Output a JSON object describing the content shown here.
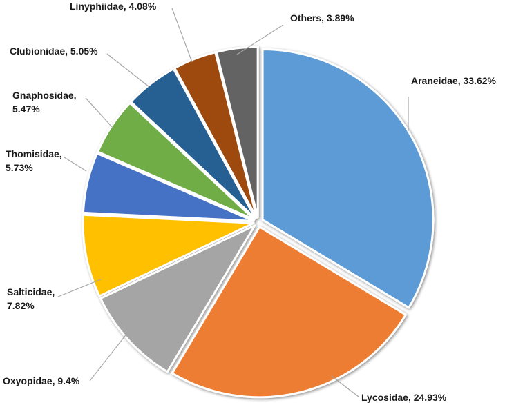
{
  "chart_data": {
    "type": "pie",
    "title": "",
    "start_angle_deg": 0,
    "direction": "clockwise",
    "slices": [
      {
        "name": "Araneidae",
        "value": 33.62,
        "color": "#5b9bd5",
        "label_lines": [
          "Araneidae, 33.62%"
        ]
      },
      {
        "name": "Lycosidae",
        "value": 24.93,
        "color": "#ed7d31",
        "label_lines": [
          "Lycosidae, 24.93%"
        ]
      },
      {
        "name": "Oxyopidae",
        "value": 9.4,
        "color": "#a5a5a5",
        "label_lines": [
          "Oxyopidae, 9.4%"
        ]
      },
      {
        "name": "Salticidae",
        "value": 7.82,
        "color": "#ffc000",
        "label_lines": [
          "Salticidae,",
          "7.82%"
        ]
      },
      {
        "name": "Thomisidae",
        "value": 5.73,
        "color": "#4472c4",
        "label_lines": [
          "Thomisidae,",
          "5.73%"
        ]
      },
      {
        "name": "Gnaphosidae",
        "value": 5.47,
        "color": "#70ad47",
        "label_lines": [
          "Gnaphosidae,",
          "5.47%"
        ]
      },
      {
        "name": "Clubionidae",
        "value": 5.05,
        "color": "#255e91",
        "label_lines": [
          "Clubionidae, 5.05%"
        ]
      },
      {
        "name": "Linyphiidae",
        "value": 4.08,
        "color": "#9e480e",
        "label_lines": [
          "Linyphiidae, 4.08%"
        ]
      },
      {
        "name": "Others",
        "value": 3.89,
        "color": "#636363",
        "label_lines": [
          "Others, 3.89%"
        ]
      }
    ]
  }
}
